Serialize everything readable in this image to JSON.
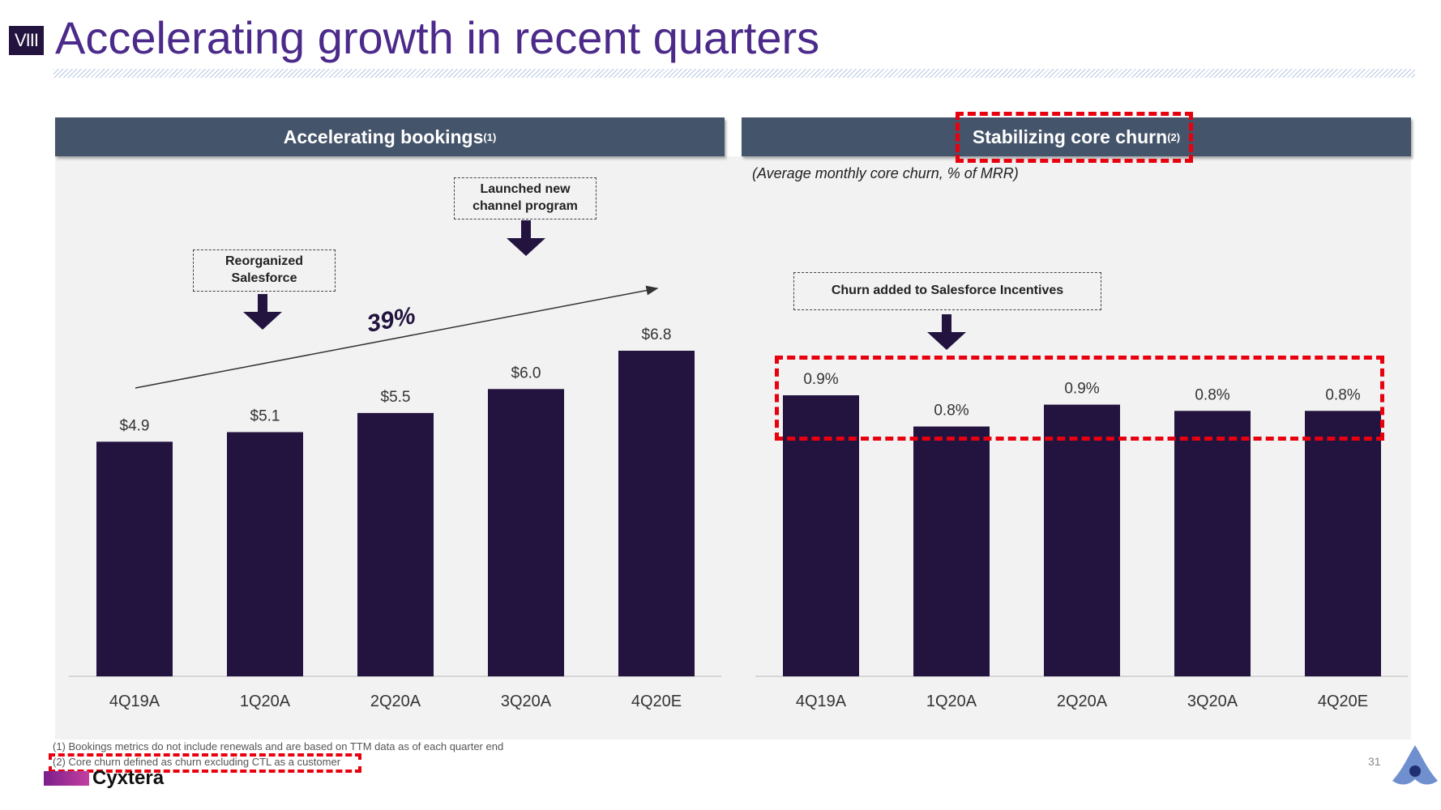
{
  "slide": {
    "section": "VIII",
    "title": "Accelerating growth in recent quarters",
    "page_number": "31",
    "brand": "Cyxtera",
    "footnotes": [
      "(1) Bookings metrics do not include renewals and are based on TTM data as of each quarter end",
      "(2) Core churn defined as churn excluding CTL as a customer"
    ]
  },
  "colors": {
    "bar": "#22133f",
    "header": "#44546a",
    "title": "#4b2a8a",
    "highlight": "#e8000f"
  },
  "chart_data": [
    {
      "type": "bar",
      "title": "Accelerating bookings",
      "title_note": "(1)",
      "categories": [
        "4Q19A",
        "1Q20A",
        "2Q20A",
        "3Q20A",
        "4Q20E"
      ],
      "values": [
        4.9,
        5.1,
        5.5,
        6.0,
        6.8
      ],
      "data_labels": [
        "$4.9",
        "$5.1",
        "$5.5",
        "$6.0",
        "$6.8"
      ],
      "ylim": [
        0,
        6.8
      ],
      "grid": false,
      "annotations": [
        {
          "text": "Reorganized Salesforce",
          "category": "1Q20A"
        },
        {
          "text": "Launched new channel program",
          "category": "3Q20A"
        },
        {
          "text": "39%",
          "kind": "growth-arrow",
          "from": "4Q19A",
          "to": "4Q20E"
        }
      ]
    },
    {
      "type": "bar",
      "title": "Stabilizing core churn",
      "title_note": "(2)",
      "subtitle": "(Average monthly core churn, % of MRR)",
      "categories": [
        "4Q19A",
        "1Q20A",
        "2Q20A",
        "3Q20A",
        "4Q20E"
      ],
      "values": [
        0.9,
        0.8,
        0.87,
        0.85,
        0.85
      ],
      "data_labels": [
        "0.9%",
        "0.8%",
        "0.9%",
        "0.8%",
        "0.8%"
      ],
      "ylim": [
        0,
        0.9
      ],
      "grid": false,
      "annotations": [
        {
          "text": "Churn added to Salesforce Incentives",
          "category": "1Q20A"
        }
      ]
    }
  ]
}
